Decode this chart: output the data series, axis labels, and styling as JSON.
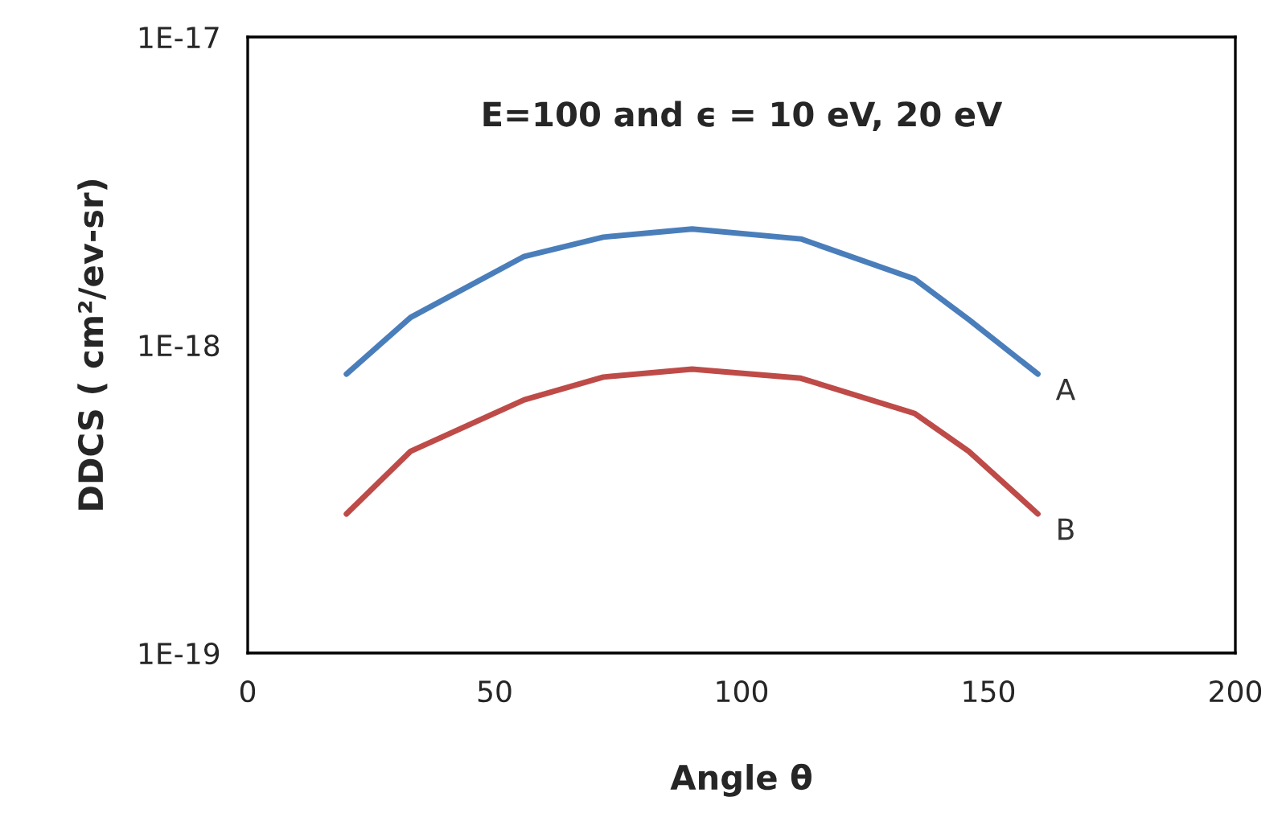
{
  "chart_data": {
    "type": "line",
    "xlabel": "Angle θ",
    "ylabel": "DDCS ( cm²/ev-sr)",
    "annotations": [
      "E=100 and ϵ = 10 eV, 20 eV"
    ],
    "log": "y",
    "grid": false,
    "legend": false,
    "marker": "none",
    "line_style": "solid",
    "xlim": [
      0,
      200
    ],
    "xticks": [
      0,
      50,
      100,
      150,
      200
    ],
    "ylim": [
      1e-19,
      1e-17
    ],
    "yticks": [
      {
        "value": 1e-19,
        "label": "1E-19"
      },
      {
        "value": 1e-18,
        "label": "1E-18"
      },
      {
        "value": 1e-17,
        "label": "1E-17"
      }
    ],
    "series": [
      {
        "name": "A",
        "color": "#4a7ebb",
        "x": [
          20,
          33,
          56,
          72,
          90,
          112,
          135,
          146,
          160
        ],
        "values": [
          8.05e-19,
          1.23e-18,
          1.94e-18,
          2.24e-18,
          2.38e-18,
          2.21e-18,
          1.64e-18,
          1.21e-18,
          8.05e-19
        ]
      },
      {
        "name": "B",
        "color": "#be4b48",
        "x": [
          20,
          33,
          56,
          72,
          90,
          112,
          135,
          146,
          160
        ],
        "values": [
          2.83e-19,
          4.52e-19,
          6.64e-19,
          7.87e-19,
          8.35e-19,
          7.8e-19,
          6e-19,
          4.52e-19,
          2.83e-19
        ]
      }
    ]
  }
}
